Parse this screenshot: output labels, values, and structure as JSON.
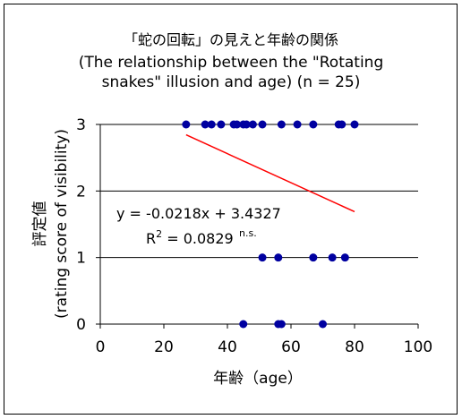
{
  "chart_data": {
    "type": "scatter",
    "title_lines": [
      "「蛇の回転」の見えと年齢の関係",
      "(The relationship between the \"Rotating",
      "snakes\" illusion and age) (n = 25)"
    ],
    "xlabel": "年齢（age）",
    "ylabel_lines": [
      "評定値",
      "(rating score of visibility)"
    ],
    "xlim": [
      0,
      100
    ],
    "ylim": [
      0,
      3
    ],
    "x_ticks": [
      "0",
      "20",
      "40",
      "60",
      "80",
      "100"
    ],
    "y_ticks": [
      "0",
      "1",
      "2",
      "3"
    ],
    "grid": "horizontal",
    "series": [
      {
        "color": "#0000a0",
        "points": [
          {
            "x": 27,
            "y": 3
          },
          {
            "x": 33,
            "y": 3
          },
          {
            "x": 35,
            "y": 3
          },
          {
            "x": 38,
            "y": 3
          },
          {
            "x": 42,
            "y": 3
          },
          {
            "x": 43,
            "y": 3
          },
          {
            "x": 45,
            "y": 3
          },
          {
            "x": 46,
            "y": 3
          },
          {
            "x": 48,
            "y": 3
          },
          {
            "x": 51,
            "y": 3
          },
          {
            "x": 57,
            "y": 3
          },
          {
            "x": 62,
            "y": 3
          },
          {
            "x": 67,
            "y": 3
          },
          {
            "x": 75,
            "y": 3
          },
          {
            "x": 76,
            "y": 3
          },
          {
            "x": 80,
            "y": 3
          },
          {
            "x": 51,
            "y": 1
          },
          {
            "x": 56,
            "y": 1
          },
          {
            "x": 67,
            "y": 1
          },
          {
            "x": 73,
            "y": 1
          },
          {
            "x": 77,
            "y": 1
          },
          {
            "x": 45,
            "y": 0
          },
          {
            "x": 56,
            "y": 0
          },
          {
            "x": 57,
            "y": 0
          },
          {
            "x": 70,
            "y": 0
          }
        ]
      }
    ],
    "trendline": {
      "x_start": 27,
      "x_end": 80,
      "slope": -0.0218,
      "intercept": 3.4327,
      "color": "#ff0000"
    },
    "annotation": {
      "equation": "y = -0.0218x + 3.4327",
      "r2_prefix": "R",
      "r2_sup": "2",
      "r2_value": " = 0.0829",
      "significance": "n.s."
    }
  }
}
